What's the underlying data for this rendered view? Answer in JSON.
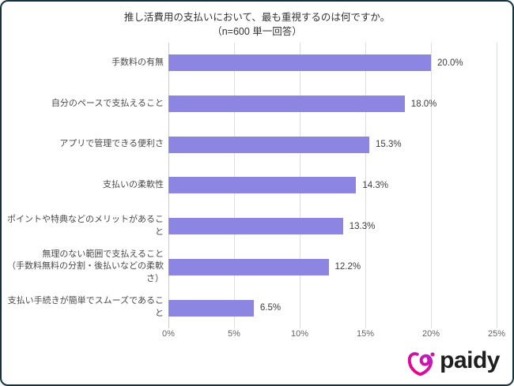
{
  "title": "推し活費用の支払いにおいて、最も重視するのは何ですか。",
  "subtitle": "（n=600  単一回答）",
  "chart_data": {
    "type": "bar",
    "orientation": "horizontal",
    "title": "推し活費用の支払いにおいて、最も重視するのは何ですか。",
    "subtitle": "（n=600  単一回答）",
    "categories": [
      "手数料の有無",
      "自分のペースで支払えること",
      "アプリで管理できる便利さ",
      "支払いの柔軟性",
      "ポイントや特典などのメリットがあること",
      "無理のない範囲で支払えること\n（手数料無料の分割・後払いなどの柔軟さ）",
      "支払い手続きが簡単でスムーズであること"
    ],
    "values": [
      20.0,
      18.0,
      15.3,
      14.3,
      13.3,
      12.2,
      6.5
    ],
    "value_labels": [
      "20.0%",
      "18.0%",
      "15.3%",
      "14.3%",
      "13.3%",
      "12.2%",
      "6.5%"
    ],
    "xlabel": "",
    "ylabel": "",
    "xlim": [
      0,
      25
    ],
    "x_ticks": [
      0,
      5,
      10,
      15,
      20,
      25
    ],
    "x_tick_labels": [
      "0%",
      "5%",
      "10%",
      "15%",
      "20%",
      "25%"
    ],
    "grid": "vertical-only",
    "legend": "none",
    "bar_color": "#8D85E2"
  },
  "footer": {
    "brand": "paidy"
  },
  "colors": {
    "bar": "#8D85E2",
    "grid": "#DEDEDE",
    "axis": "#CCCCCC",
    "title_text": "#333333",
    "label_text": "#4A4A4A",
    "tick_text": "#5F6368",
    "frame_border": "#15333E",
    "background": "#FFFFFF",
    "logo_pink": "#F00082",
    "logo_purple": "#B722C4",
    "logo_text": "#1E1E1E"
  }
}
